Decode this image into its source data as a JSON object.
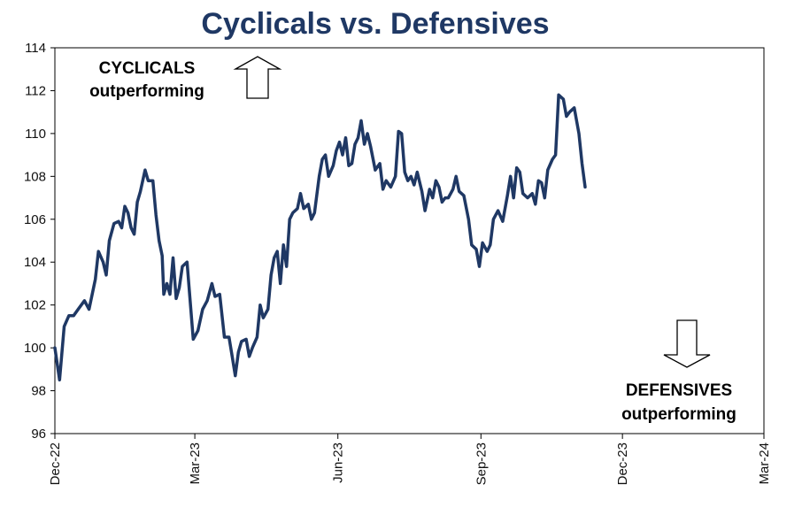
{
  "chart_data": {
    "type": "line",
    "title": "Cyclicals vs. Defensives",
    "xlabel": "",
    "ylabel": "",
    "ylim": [
      96,
      114
    ],
    "yticks": [
      96,
      98,
      100,
      102,
      104,
      106,
      108,
      110,
      112,
      114
    ],
    "xlim": [
      "2022-12-01",
      "2024-03-01"
    ],
    "xticks": [
      {
        "date": "2022-12-01",
        "label": "Dec-22"
      },
      {
        "date": "2023-03-01",
        "label": "Mar-23"
      },
      {
        "date": "2023-06-01",
        "label": "Jun-23"
      },
      {
        "date": "2023-09-01",
        "label": "Sep-23"
      },
      {
        "date": "2023-12-01",
        "label": "Dec-23"
      },
      {
        "date": "2024-03-01",
        "label": "Mar-24"
      }
    ],
    "grid": false,
    "line_color": "#1f3864",
    "annotations": [
      {
        "lines": [
          "CYCLICALS",
          "outperforming"
        ],
        "arrow": "up"
      },
      {
        "lines": [
          "DEFENSIVES",
          "outperforming"
        ],
        "arrow": "down"
      }
    ],
    "series": [
      {
        "values": [
          [
            "2022-12-01",
            100.0
          ],
          [
            "2022-12-04",
            98.5
          ],
          [
            "2022-12-07",
            101.0
          ],
          [
            "2022-12-10",
            101.5
          ],
          [
            "2022-12-13",
            101.5
          ],
          [
            "2022-12-16",
            101.8
          ],
          [
            "2022-12-20",
            102.2
          ],
          [
            "2022-12-23",
            101.8
          ],
          [
            "2022-12-27",
            103.2
          ],
          [
            "2022-12-29",
            104.5
          ],
          [
            "2023-01-01",
            104.0
          ],
          [
            "2023-01-03",
            103.4
          ],
          [
            "2023-01-05",
            105.0
          ],
          [
            "2023-01-08",
            105.8
          ],
          [
            "2023-01-11",
            105.9
          ],
          [
            "2023-01-13",
            105.6
          ],
          [
            "2023-01-15",
            106.6
          ],
          [
            "2023-01-17",
            106.3
          ],
          [
            "2023-01-19",
            105.6
          ],
          [
            "2023-01-21",
            105.3
          ],
          [
            "2023-01-23",
            106.8
          ],
          [
            "2023-01-25",
            107.3
          ],
          [
            "2023-01-28",
            108.3
          ],
          [
            "2023-01-30",
            107.8
          ],
          [
            "2023-02-02",
            107.8
          ],
          [
            "2023-02-04",
            106.2
          ],
          [
            "2023-02-06",
            105.0
          ],
          [
            "2023-02-08",
            104.3
          ],
          [
            "2023-02-09",
            102.5
          ],
          [
            "2023-02-11",
            103.0
          ],
          [
            "2023-02-13",
            102.5
          ],
          [
            "2023-02-15",
            104.2
          ],
          [
            "2023-02-17",
            102.3
          ],
          [
            "2023-02-19",
            102.8
          ],
          [
            "2023-02-21",
            103.8
          ],
          [
            "2023-02-24",
            104.0
          ],
          [
            "2023-02-26",
            102.2
          ],
          [
            "2023-02-28",
            100.4
          ],
          [
            "2023-03-03",
            100.8
          ],
          [
            "2023-03-06",
            101.8
          ],
          [
            "2023-03-09",
            102.2
          ],
          [
            "2023-03-12",
            103.0
          ],
          [
            "2023-03-14",
            102.4
          ],
          [
            "2023-03-17",
            102.5
          ],
          [
            "2023-03-20",
            100.5
          ],
          [
            "2023-03-23",
            100.5
          ],
          [
            "2023-03-25",
            99.6
          ],
          [
            "2023-03-27",
            98.7
          ],
          [
            "2023-03-29",
            99.8
          ],
          [
            "2023-03-31",
            100.3
          ],
          [
            "2023-04-03",
            100.4
          ],
          [
            "2023-04-05",
            99.6
          ],
          [
            "2023-04-07",
            100.0
          ],
          [
            "2023-04-10",
            100.5
          ],
          [
            "2023-04-12",
            102.0
          ],
          [
            "2023-04-14",
            101.4
          ],
          [
            "2023-04-17",
            101.8
          ],
          [
            "2023-04-19",
            103.4
          ],
          [
            "2023-04-21",
            104.2
          ],
          [
            "2023-04-23",
            104.5
          ],
          [
            "2023-04-25",
            103.0
          ],
          [
            "2023-04-27",
            104.8
          ],
          [
            "2023-04-29",
            103.8
          ],
          [
            "2023-05-01",
            106.0
          ],
          [
            "2023-05-03",
            106.3
          ],
          [
            "2023-05-06",
            106.5
          ],
          [
            "2023-05-08",
            107.2
          ],
          [
            "2023-05-10",
            106.5
          ],
          [
            "2023-05-13",
            106.7
          ],
          [
            "2023-05-15",
            106.0
          ],
          [
            "2023-05-17",
            106.3
          ],
          [
            "2023-05-20",
            108.0
          ],
          [
            "2023-05-22",
            108.8
          ],
          [
            "2023-05-24",
            109.0
          ],
          [
            "2023-05-26",
            108.0
          ],
          [
            "2023-05-29",
            108.5
          ],
          [
            "2023-05-31",
            109.2
          ],
          [
            "2023-06-02",
            109.6
          ],
          [
            "2023-06-04",
            109.0
          ],
          [
            "2023-06-06",
            109.8
          ],
          [
            "2023-06-08",
            108.5
          ],
          [
            "2023-06-10",
            108.6
          ],
          [
            "2023-06-12",
            109.5
          ],
          [
            "2023-06-14",
            109.8
          ],
          [
            "2023-06-16",
            110.6
          ],
          [
            "2023-06-18",
            109.5
          ],
          [
            "2023-06-20",
            110.0
          ],
          [
            "2023-06-22",
            109.4
          ],
          [
            "2023-06-25",
            108.3
          ],
          [
            "2023-06-28",
            108.6
          ],
          [
            "2023-06-30",
            107.4
          ],
          [
            "2023-07-02",
            107.8
          ],
          [
            "2023-07-05",
            107.5
          ],
          [
            "2023-07-08",
            108.0
          ],
          [
            "2023-07-10",
            110.1
          ],
          [
            "2023-07-12",
            110.0
          ],
          [
            "2023-07-14",
            108.2
          ],
          [
            "2023-07-16",
            107.8
          ],
          [
            "2023-07-18",
            108.0
          ],
          [
            "2023-07-20",
            107.6
          ],
          [
            "2023-07-22",
            108.2
          ],
          [
            "2023-07-25",
            107.3
          ],
          [
            "2023-07-27",
            106.4
          ],
          [
            "2023-07-30",
            107.4
          ],
          [
            "2023-08-01",
            107.0
          ],
          [
            "2023-08-03",
            107.8
          ],
          [
            "2023-08-05",
            107.5
          ],
          [
            "2023-08-07",
            106.8
          ],
          [
            "2023-08-09",
            107.0
          ],
          [
            "2023-08-11",
            107.0
          ],
          [
            "2023-08-14",
            107.4
          ],
          [
            "2023-08-16",
            108.0
          ],
          [
            "2023-08-18",
            107.3
          ],
          [
            "2023-08-21",
            107.1
          ],
          [
            "2023-08-24",
            106.0
          ],
          [
            "2023-08-26",
            104.8
          ],
          [
            "2023-08-29",
            104.6
          ],
          [
            "2023-08-31",
            103.8
          ],
          [
            "2023-09-02",
            104.9
          ],
          [
            "2023-09-05",
            104.5
          ],
          [
            "2023-09-07",
            104.8
          ],
          [
            "2023-09-09",
            106.0
          ],
          [
            "2023-09-12",
            106.4
          ],
          [
            "2023-09-15",
            105.9
          ],
          [
            "2023-09-18",
            107.1
          ],
          [
            "2023-09-20",
            108.0
          ],
          [
            "2023-09-22",
            107.0
          ],
          [
            "2023-09-24",
            108.4
          ],
          [
            "2023-09-26",
            108.2
          ],
          [
            "2023-09-28",
            107.2
          ],
          [
            "2023-10-01",
            107.0
          ],
          [
            "2023-10-04",
            107.2
          ],
          [
            "2023-10-06",
            106.7
          ],
          [
            "2023-10-08",
            107.8
          ],
          [
            "2023-10-10",
            107.7
          ],
          [
            "2023-10-12",
            107.0
          ],
          [
            "2023-10-14",
            108.3
          ],
          [
            "2023-10-17",
            108.8
          ],
          [
            "2023-10-19",
            109.0
          ],
          [
            "2023-10-21",
            111.8
          ],
          [
            "2023-10-24",
            111.6
          ],
          [
            "2023-10-26",
            110.8
          ],
          [
            "2023-10-28",
            111.0
          ],
          [
            "2023-10-31",
            111.2
          ],
          [
            "2023-11-03",
            110.0
          ],
          [
            "2023-11-05",
            108.6
          ],
          [
            "2023-11-07",
            107.5
          ]
        ]
      }
    ]
  }
}
